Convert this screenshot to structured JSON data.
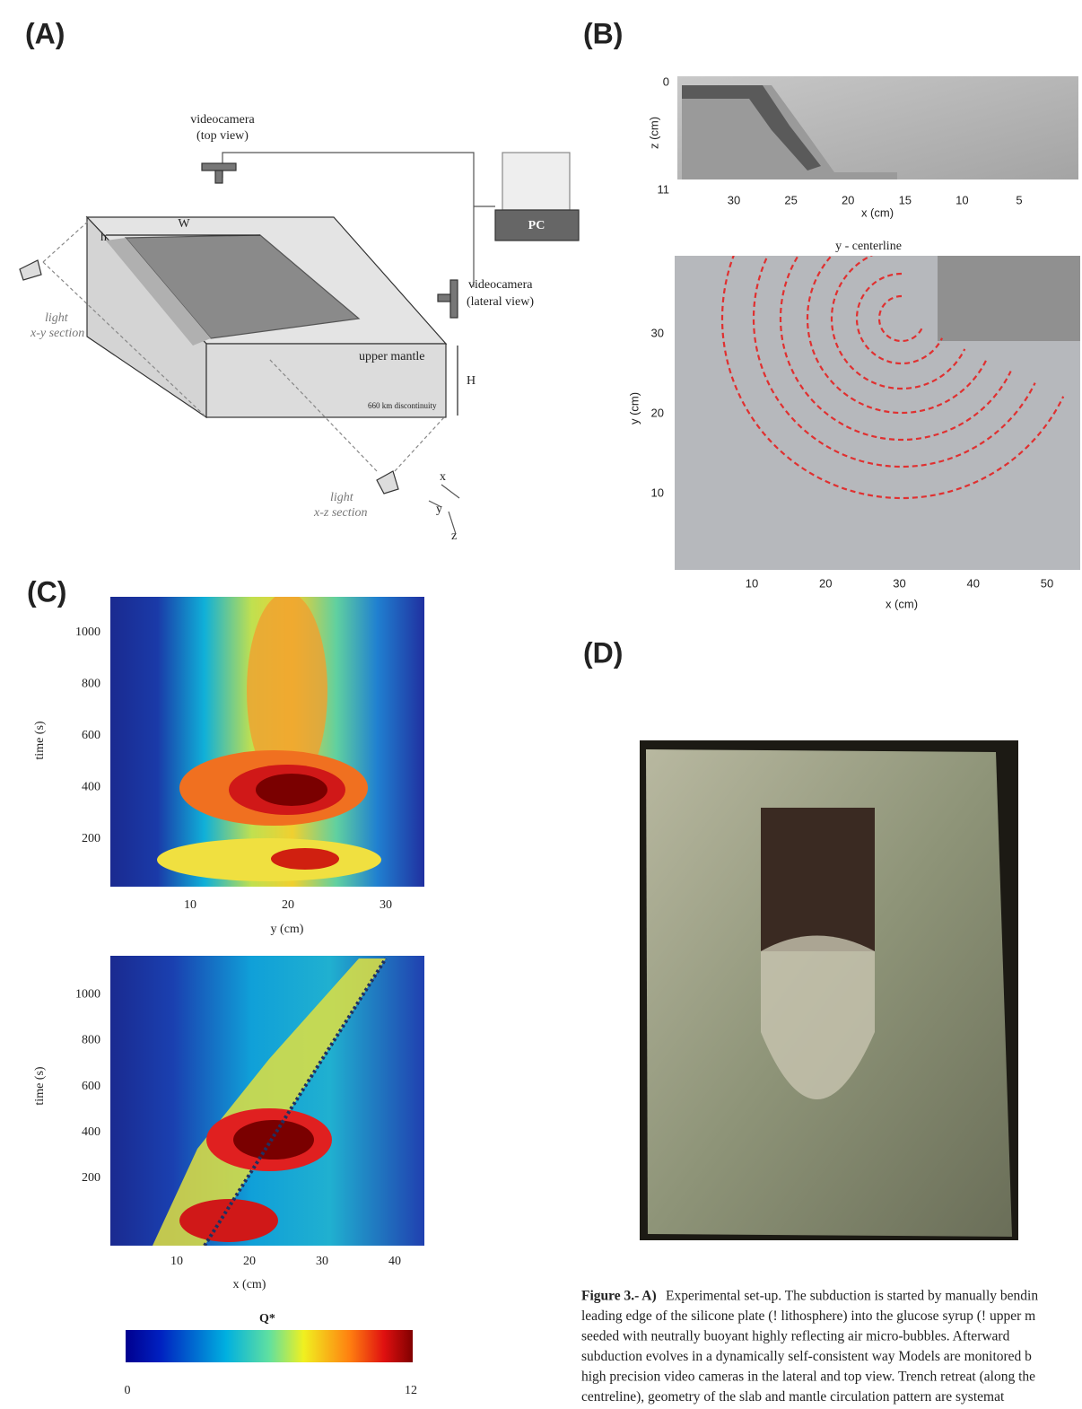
{
  "panel_a": {
    "label": "(A)",
    "top_camera": [
      "videocamera",
      "(top view)"
    ],
    "pc": "PC",
    "lateral_camera": [
      "videocamera",
      "(lateral view)"
    ],
    "width": "W",
    "thickness": "h",
    "layer": "upper mantle",
    "depth": "H",
    "discontinuity": "660 km discontinuity",
    "light_xy": [
      "light",
      "x-y section"
    ],
    "light_xz": [
      "light",
      "x-z section"
    ],
    "axes": [
      "x",
      "y",
      "z"
    ]
  },
  "panel_b": {
    "label": "(B)",
    "side_view": {
      "y_title": "z (cm)",
      "y_ticks": [
        0,
        11
      ],
      "x_ticks": [
        30,
        25,
        20,
        15,
        10,
        5
      ],
      "x_title": "x (cm)"
    },
    "top_view": {
      "note": "y - centerline",
      "y_title": "y (cm)",
      "y_ticks": [
        30,
        20,
        10
      ],
      "x_ticks": [
        10,
        20,
        30,
        40,
        50
      ],
      "x_title": "x (cm)"
    }
  },
  "panel_c": {
    "label": "(C)",
    "top_plot": {
      "y_title": "time (s)",
      "y_ticks": [
        200,
        400,
        600,
        800,
        1000
      ],
      "x_ticks": [
        10,
        20,
        30
      ],
      "x_title": "y (cm)"
    },
    "bottom_plot": {
      "y_title": "time (s)",
      "y_ticks": [
        200,
        400,
        600,
        800,
        1000
      ],
      "x_ticks": [
        10,
        20,
        30,
        40
      ],
      "x_title": "x (cm)"
    },
    "colorbar": {
      "title": "Q*",
      "min": 0,
      "max": 12
    }
  },
  "panel_d": {
    "label": "(D)"
  },
  "caption": {
    "lead": "Figure 3.- A)",
    "lines": [
      " Experimental set-up. The subduction is started by manually bendin",
      "leading edge of the silicone plate (! lithosphere) into the glucose syrup (! upper m",
      "seeded with neutrally buoyant highly reflecting air micro-bubbles. Afterward",
      "subduction evolves in a dynamically self-consistent way Models are monitored b",
      "high precision video cameras in the lateral and top view. Trench retreat (along the",
      "centreline), geometry of the slab and mantle circulation pattern are systemat"
    ]
  }
}
